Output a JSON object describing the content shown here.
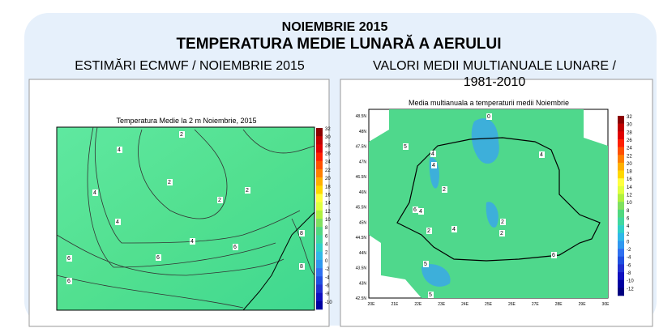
{
  "header": {
    "line1": "NOIEMBRIE 2015",
    "line2": "TEMPERATURA MEDIE LUNARĂ A AERULUI"
  },
  "left": {
    "heading": "ESTIMĂRI ECMWF / NOIEMBRIE 2015",
    "map_title": "Temperatura Medie la 2 m Noiembrie, 2015",
    "colorbar": [
      "32",
      "30",
      "28",
      "26",
      "24",
      "22",
      "20",
      "18",
      "16",
      "14",
      "12",
      "10",
      "8",
      "6",
      "4",
      "2",
      "0",
      "-2",
      "-4",
      "-6",
      "-8",
      "-10"
    ],
    "contour_labels": [
      "2",
      "4",
      "2",
      "2",
      "2",
      "4",
      "4",
      "4",
      "6",
      "6",
      "6",
      "8",
      "8",
      "6"
    ]
  },
  "right": {
    "heading_line1": "VALORI MEDII MULTIANUALE LUNARE /",
    "heading_line2": "1981-2010",
    "map_title": "Media multianuala a temperaturii medii Noiembrie",
    "y_labels": [
      "48.5N",
      "48N",
      "47.5N",
      "47N",
      "46.5N",
      "46N",
      "45.5N",
      "45N",
      "44.5N",
      "44N",
      "43.5N",
      "43N",
      "42.5N"
    ],
    "x_labels": [
      "20E",
      "21E",
      "22E",
      "23E",
      "24E",
      "25E",
      "26E",
      "27E",
      "28E",
      "29E",
      "30E"
    ],
    "colorbar": [
      "32",
      "30",
      "28",
      "26",
      "24",
      "22",
      "20",
      "18",
      "16",
      "14",
      "12",
      "10",
      "8",
      "6",
      "4",
      "2",
      "0",
      "-2",
      "-4",
      "-6",
      "-8",
      "-10",
      "-12"
    ],
    "contour_labels": [
      "0",
      "5",
      "4",
      "2",
      "4",
      "6",
      "2",
      "2",
      "4",
      "2",
      "4",
      "4",
      "6",
      "5",
      "5"
    ]
  }
}
